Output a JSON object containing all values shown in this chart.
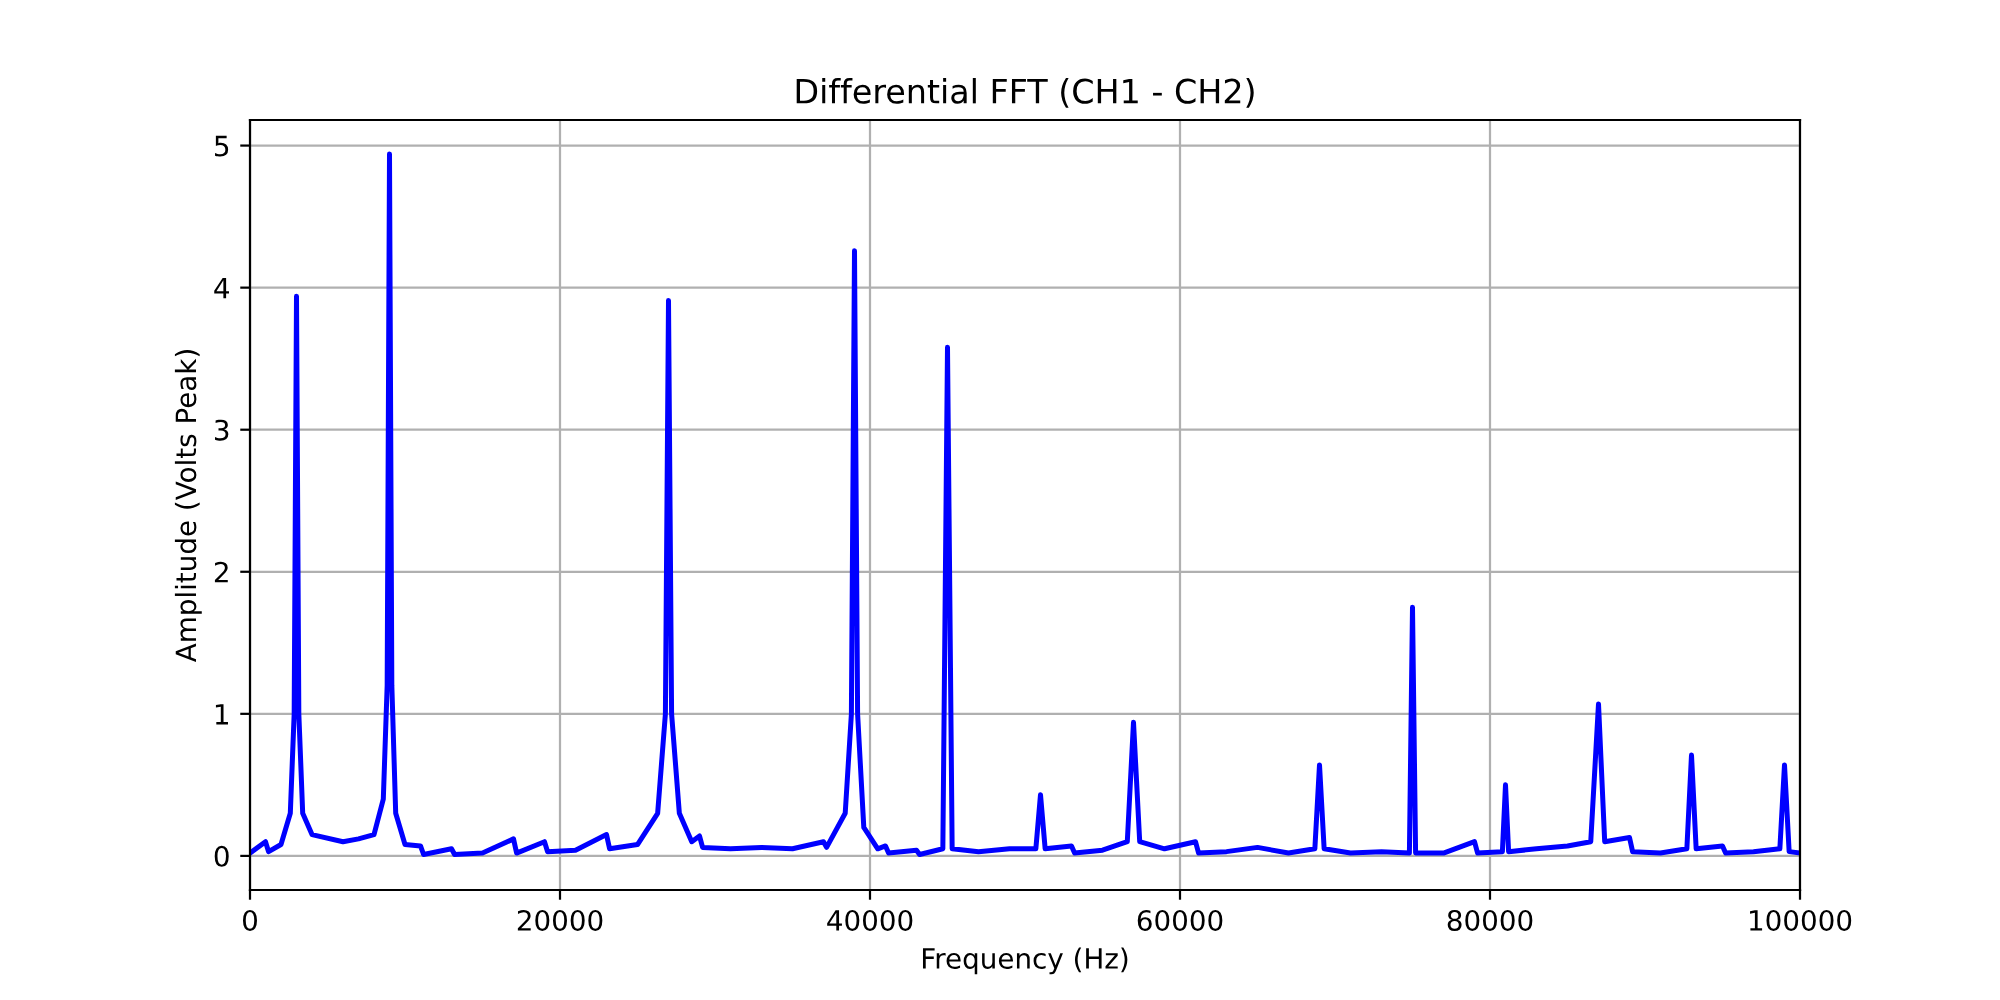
{
  "chart_data": {
    "type": "line",
    "title": "Differential FFT (CH1 - CH2)",
    "xlabel": "Frequency (Hz)",
    "ylabel": "Amplitude (Volts Peak)",
    "xlim": [
      0,
      100000
    ],
    "ylim": [
      -0.24,
      5.18
    ],
    "xticks": [
      0,
      20000,
      40000,
      60000,
      80000,
      100000
    ],
    "yticks": [
      0,
      1,
      2,
      3,
      4,
      5
    ],
    "grid": true,
    "marker": "none",
    "line_style": "solid",
    "x": [
      0,
      1000,
      1200,
      2000,
      2600,
      2850,
      3000,
      3150,
      3400,
      4000,
      6000,
      7000,
      8000,
      8600,
      8850,
      9000,
      9150,
      9400,
      10000,
      11000,
      11200,
      13000,
      13200,
      15000,
      17000,
      17200,
      19000,
      19200,
      21000,
      23000,
      23200,
      25000,
      26300,
      26800,
      27000,
      27200,
      27700,
      28500,
      29000,
      29200,
      31000,
      33000,
      35000,
      37000,
      37200,
      38400,
      38800,
      39000,
      39200,
      39600,
      40500,
      41000,
      41200,
      43000,
      43200,
      44700,
      45000,
      45300,
      47000,
      49000,
      50700,
      51000,
      51300,
      53000,
      53200,
      55000,
      56600,
      57000,
      57400,
      59000,
      61000,
      61200,
      63000,
      65000,
      67000,
      68700,
      69000,
      69300,
      71000,
      73000,
      74800,
      75000,
      75200,
      77000,
      79000,
      79200,
      80800,
      81000,
      81200,
      83000,
      85000,
      86500,
      87000,
      87400,
      89000,
      89200,
      91000,
      92700,
      93000,
      93300,
      95000,
      95200,
      97000,
      98700,
      99000,
      99300,
      100000
    ],
    "series": [
      {
        "color": "#0000ff",
        "values": [
          0.02,
          0.1,
          0.03,
          0.08,
          0.3,
          1.0,
          3.94,
          1.0,
          0.3,
          0.15,
          0.1,
          0.12,
          0.15,
          0.4,
          1.2,
          4.94,
          1.2,
          0.3,
          0.08,
          0.07,
          0.01,
          0.05,
          0.01,
          0.02,
          0.12,
          0.02,
          0.1,
          0.03,
          0.04,
          0.15,
          0.05,
          0.08,
          0.3,
          1.0,
          3.91,
          1.0,
          0.3,
          0.1,
          0.14,
          0.06,
          0.05,
          0.06,
          0.05,
          0.1,
          0.06,
          0.3,
          1.0,
          4.26,
          1.0,
          0.2,
          0.05,
          0.07,
          0.02,
          0.04,
          0.01,
          0.05,
          3.58,
          0.05,
          0.03,
          0.05,
          0.05,
          0.43,
          0.05,
          0.07,
          0.02,
          0.04,
          0.1,
          0.94,
          0.1,
          0.05,
          0.1,
          0.02,
          0.03,
          0.06,
          0.02,
          0.05,
          0.64,
          0.05,
          0.02,
          0.03,
          0.02,
          1.75,
          0.02,
          0.02,
          0.1,
          0.02,
          0.03,
          0.5,
          0.03,
          0.05,
          0.07,
          0.1,
          1.07,
          0.1,
          0.13,
          0.03,
          0.02,
          0.05,
          0.71,
          0.05,
          0.07,
          0.02,
          0.03,
          0.05,
          0.64,
          0.03,
          0.02
        ]
      }
    ]
  }
}
